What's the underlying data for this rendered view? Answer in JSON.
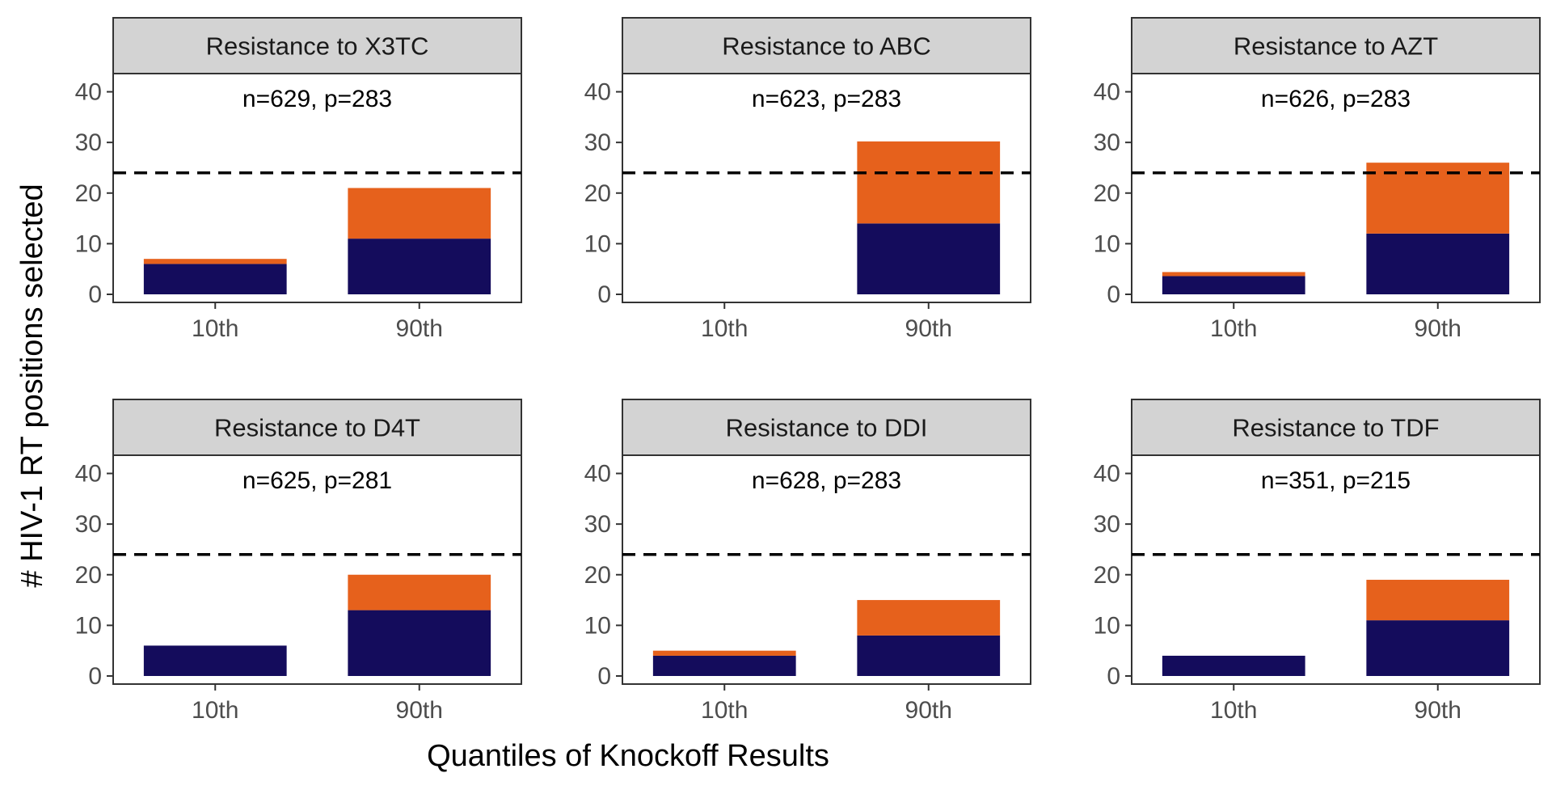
{
  "figure": {
    "ylabel": "# HIV-1 RT positions selected",
    "xlabel": "Quantiles of Knockoff Results"
  },
  "colors": {
    "lower_segment": "#140c5c",
    "upper_segment": "#e6611c",
    "strip_background": "#d3d3d3",
    "reference_line": "#000000"
  },
  "chart_data": [
    {
      "type": "bar",
      "stacked": true,
      "title": "Resistance to X3TC",
      "annotation": "n=629, p=283",
      "categories": [
        "10th",
        "90th"
      ],
      "series": [
        {
          "values": [
            6,
            11
          ]
        },
        {
          "values": [
            1,
            10
          ]
        }
      ],
      "ylim": [
        0,
        42
      ],
      "yticks": [
        0,
        10,
        20,
        30,
        40
      ],
      "reference_line": 24
    },
    {
      "type": "bar",
      "stacked": true,
      "title": "Resistance to ABC",
      "annotation": "n=623, p=283",
      "categories": [
        "10th",
        "90th"
      ],
      "series": [
        {
          "values": [
            0,
            14
          ]
        },
        {
          "values": [
            0,
            16.2
          ]
        }
      ],
      "ylim": [
        0,
        42
      ],
      "yticks": [
        0,
        10,
        20,
        30,
        40
      ],
      "reference_line": 24
    },
    {
      "type": "bar",
      "stacked": true,
      "title": "Resistance to AZT",
      "annotation": "n=626, p=283",
      "categories": [
        "10th",
        "90th"
      ],
      "series": [
        {
          "values": [
            3.6,
            12
          ]
        },
        {
          "values": [
            0.8,
            14
          ]
        }
      ],
      "ylim": [
        0,
        42
      ],
      "yticks": [
        0,
        10,
        20,
        30,
        40
      ],
      "reference_line": 24
    },
    {
      "type": "bar",
      "stacked": true,
      "title": "Resistance to D4T",
      "annotation": "n=625, p=281",
      "categories": [
        "10th",
        "90th"
      ],
      "series": [
        {
          "values": [
            6,
            13
          ]
        },
        {
          "values": [
            0,
            7
          ]
        }
      ],
      "ylim": [
        0,
        42
      ],
      "yticks": [
        0,
        10,
        20,
        30,
        40
      ],
      "reference_line": 24
    },
    {
      "type": "bar",
      "stacked": true,
      "title": "Resistance to DDI",
      "annotation": "n=628, p=283",
      "categories": [
        "10th",
        "90th"
      ],
      "series": [
        {
          "values": [
            4,
            8
          ]
        },
        {
          "values": [
            1,
            7
          ]
        }
      ],
      "ylim": [
        0,
        42
      ],
      "yticks": [
        0,
        10,
        20,
        30,
        40
      ],
      "reference_line": 24
    },
    {
      "type": "bar",
      "stacked": true,
      "title": "Resistance to TDF",
      "annotation": "n=351, p=215",
      "categories": [
        "10th",
        "90th"
      ],
      "series": [
        {
          "values": [
            4,
            11
          ]
        },
        {
          "values": [
            0,
            8
          ]
        }
      ],
      "ylim": [
        0,
        42
      ],
      "yticks": [
        0,
        10,
        20,
        30,
        40
      ],
      "reference_line": 24
    }
  ]
}
